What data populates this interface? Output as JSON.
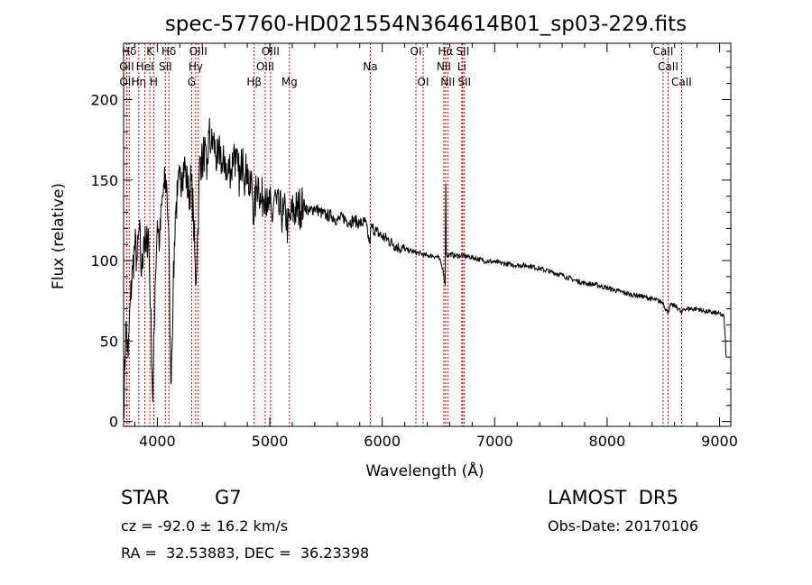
{
  "chart_data": {
    "type": "line",
    "title": "spec-57760-HD021554N364614B01_sp03-229.fits",
    "xlabel": "Wavelength (Å)",
    "ylabel": "Flux (relative)",
    "xlim": [
      3700,
      9100
    ],
    "ylim": [
      -3,
      235
    ],
    "xticks": [
      4000,
      5000,
      6000,
      7000,
      8000,
      9000
    ],
    "yticks": [
      0,
      50,
      100,
      150,
      200
    ],
    "grid": false,
    "series": [
      {
        "x": [
          3700,
          3720,
          3740,
          3760,
          3780,
          3800,
          3820,
          3840,
          3860,
          3880,
          3900,
          3920,
          3940,
          3960,
          3980,
          4000,
          4020,
          4040,
          4060,
          4080,
          4100,
          4120,
          4140,
          4160,
          4180,
          4200,
          4220,
          4240,
          4260,
          4280,
          4300,
          4320,
          4340,
          4360,
          4380,
          4400,
          4420,
          4440,
          4460,
          4480,
          4500,
          4520,
          4540,
          4560,
          4580,
          4600,
          4620,
          4640,
          4660,
          4680,
          4700,
          4720,
          4740,
          4760,
          4780,
          4800,
          4820,
          4840,
          4860,
          4880,
          4900,
          4920,
          4940,
          4960,
          4980,
          5000,
          5020,
          5040,
          5060,
          5080,
          5100,
          5120,
          5140,
          5160,
          5180,
          5200,
          5250,
          5300,
          5350,
          5400,
          5450,
          5500,
          5550,
          5600,
          5650,
          5700,
          5750,
          5800,
          5850,
          5890,
          5900,
          5950,
          6000,
          6050,
          6100,
          6150,
          6200,
          6250,
          6300,
          6350,
          6400,
          6450,
          6500,
          6540,
          6560,
          6565,
          6570,
          6580,
          6600,
          6650,
          6700,
          6800,
          6900,
          7000,
          7100,
          7200,
          7300,
          7400,
          7500,
          7600,
          7700,
          7800,
          7900,
          8000,
          8100,
          8200,
          8300,
          8400,
          8498,
          8520,
          8542,
          8560,
          8600,
          8640,
          8662,
          8680,
          8700,
          8800,
          8900,
          9000,
          9020,
          9040,
          9060
        ],
        "y": [
          5,
          60,
          40,
          75,
          95,
          110,
          100,
          120,
          90,
          115,
          105,
          120,
          70,
          12,
          85,
          125,
          110,
          135,
          145,
          150,
          120,
          25,
          75,
          130,
          140,
          150,
          155,
          160,
          150,
          140,
          150,
          130,
          85,
          120,
          165,
          160,
          170,
          150,
          180,
          170,
          175,
          165,
          160,
          170,
          155,
          165,
          150,
          160,
          155,
          170,
          160,
          155,
          150,
          170,
          150,
          160,
          140,
          150,
          125,
          145,
          150,
          135,
          140,
          145,
          130,
          135,
          125,
          140,
          135,
          130,
          130,
          128,
          130,
          120,
          125,
          130,
          132,
          135,
          130,
          133,
          130,
          128,
          128,
          125,
          127,
          124,
          125,
          123,
          124,
          110,
          121,
          118,
          115,
          113,
          110,
          108,
          107,
          106,
          105,
          104,
          103,
          103,
          102,
          95,
          85,
          148,
          104,
          103,
          104,
          103,
          103,
          102,
          100,
          99,
          98,
          97,
          97,
          95,
          93,
          91,
          88,
          86,
          85,
          83,
          81,
          79,
          78,
          76,
          74,
          70,
          68,
          72,
          72,
          70,
          67,
          70,
          70,
          70,
          68,
          67,
          66,
          65,
          40
        ]
      }
    ],
    "lines": [
      {
        "label": "Hδ",
        "x": 3750,
        "row": 1
      },
      {
        "label": "OII",
        "x": 3727,
        "row": 2
      },
      {
        "label": "OII",
        "x": 3729,
        "row": 3
      },
      {
        "label": "Hη",
        "x": 3835,
        "row": 3
      },
      {
        "label": "HeI",
        "x": 3889,
        "row": 2
      },
      {
        "label": "K",
        "x": 3934,
        "row": 1
      },
      {
        "label": "H",
        "x": 3968,
        "row": 3
      },
      {
        "label": "SII",
        "x": 4072,
        "row": 2
      },
      {
        "label": "Hδ",
        "x": 4102,
        "row": 1
      },
      {
        "label": "G",
        "x": 4305,
        "row": 3
      },
      {
        "label": "Hγ",
        "x": 4341,
        "row": 2
      },
      {
        "label": "OIII",
        "x": 4364,
        "row": 1
      },
      {
        "label": "Hβ",
        "x": 4861,
        "row": 3
      },
      {
        "label": "OIII",
        "x": 4959,
        "row": 2
      },
      {
        "label": "OIII",
        "x": 5007,
        "row": 1
      },
      {
        "label": "Mg",
        "x": 5175,
        "row": 3
      },
      {
        "label": "Na",
        "x": 5894,
        "row": 2
      },
      {
        "label": "OI",
        "x": 6300,
        "row": 1
      },
      {
        "label": "OI",
        "x": 6364,
        "row": 3
      },
      {
        "label": "NII",
        "x": 6548,
        "row": 2
      },
      {
        "label": "Hα",
        "x": 6563,
        "row": 1
      },
      {
        "label": "NII",
        "x": 6583,
        "row": 3
      },
      {
        "label": "Li",
        "x": 6708,
        "row": 2
      },
      {
        "label": "SII",
        "x": 6716,
        "row": 1
      },
      {
        "label": "SII",
        "x": 6731,
        "row": 3
      },
      {
        "label": "CaII",
        "x": 8498,
        "row": 1
      },
      {
        "label": "CaII",
        "x": 8542,
        "row": 2
      },
      {
        "label": "CaII",
        "x": 8662,
        "row": 3
      }
    ],
    "line_color": "#cc0000"
  },
  "info": {
    "class": "STAR",
    "subclass": "G7",
    "survey": "LAMOST  DR5",
    "cz": "cz = -92.0 ± 16.2 km/s",
    "obsdate": "Obs-Date: 20170106",
    "radec": "RA =  32.53883, DEC =  36.23398"
  }
}
